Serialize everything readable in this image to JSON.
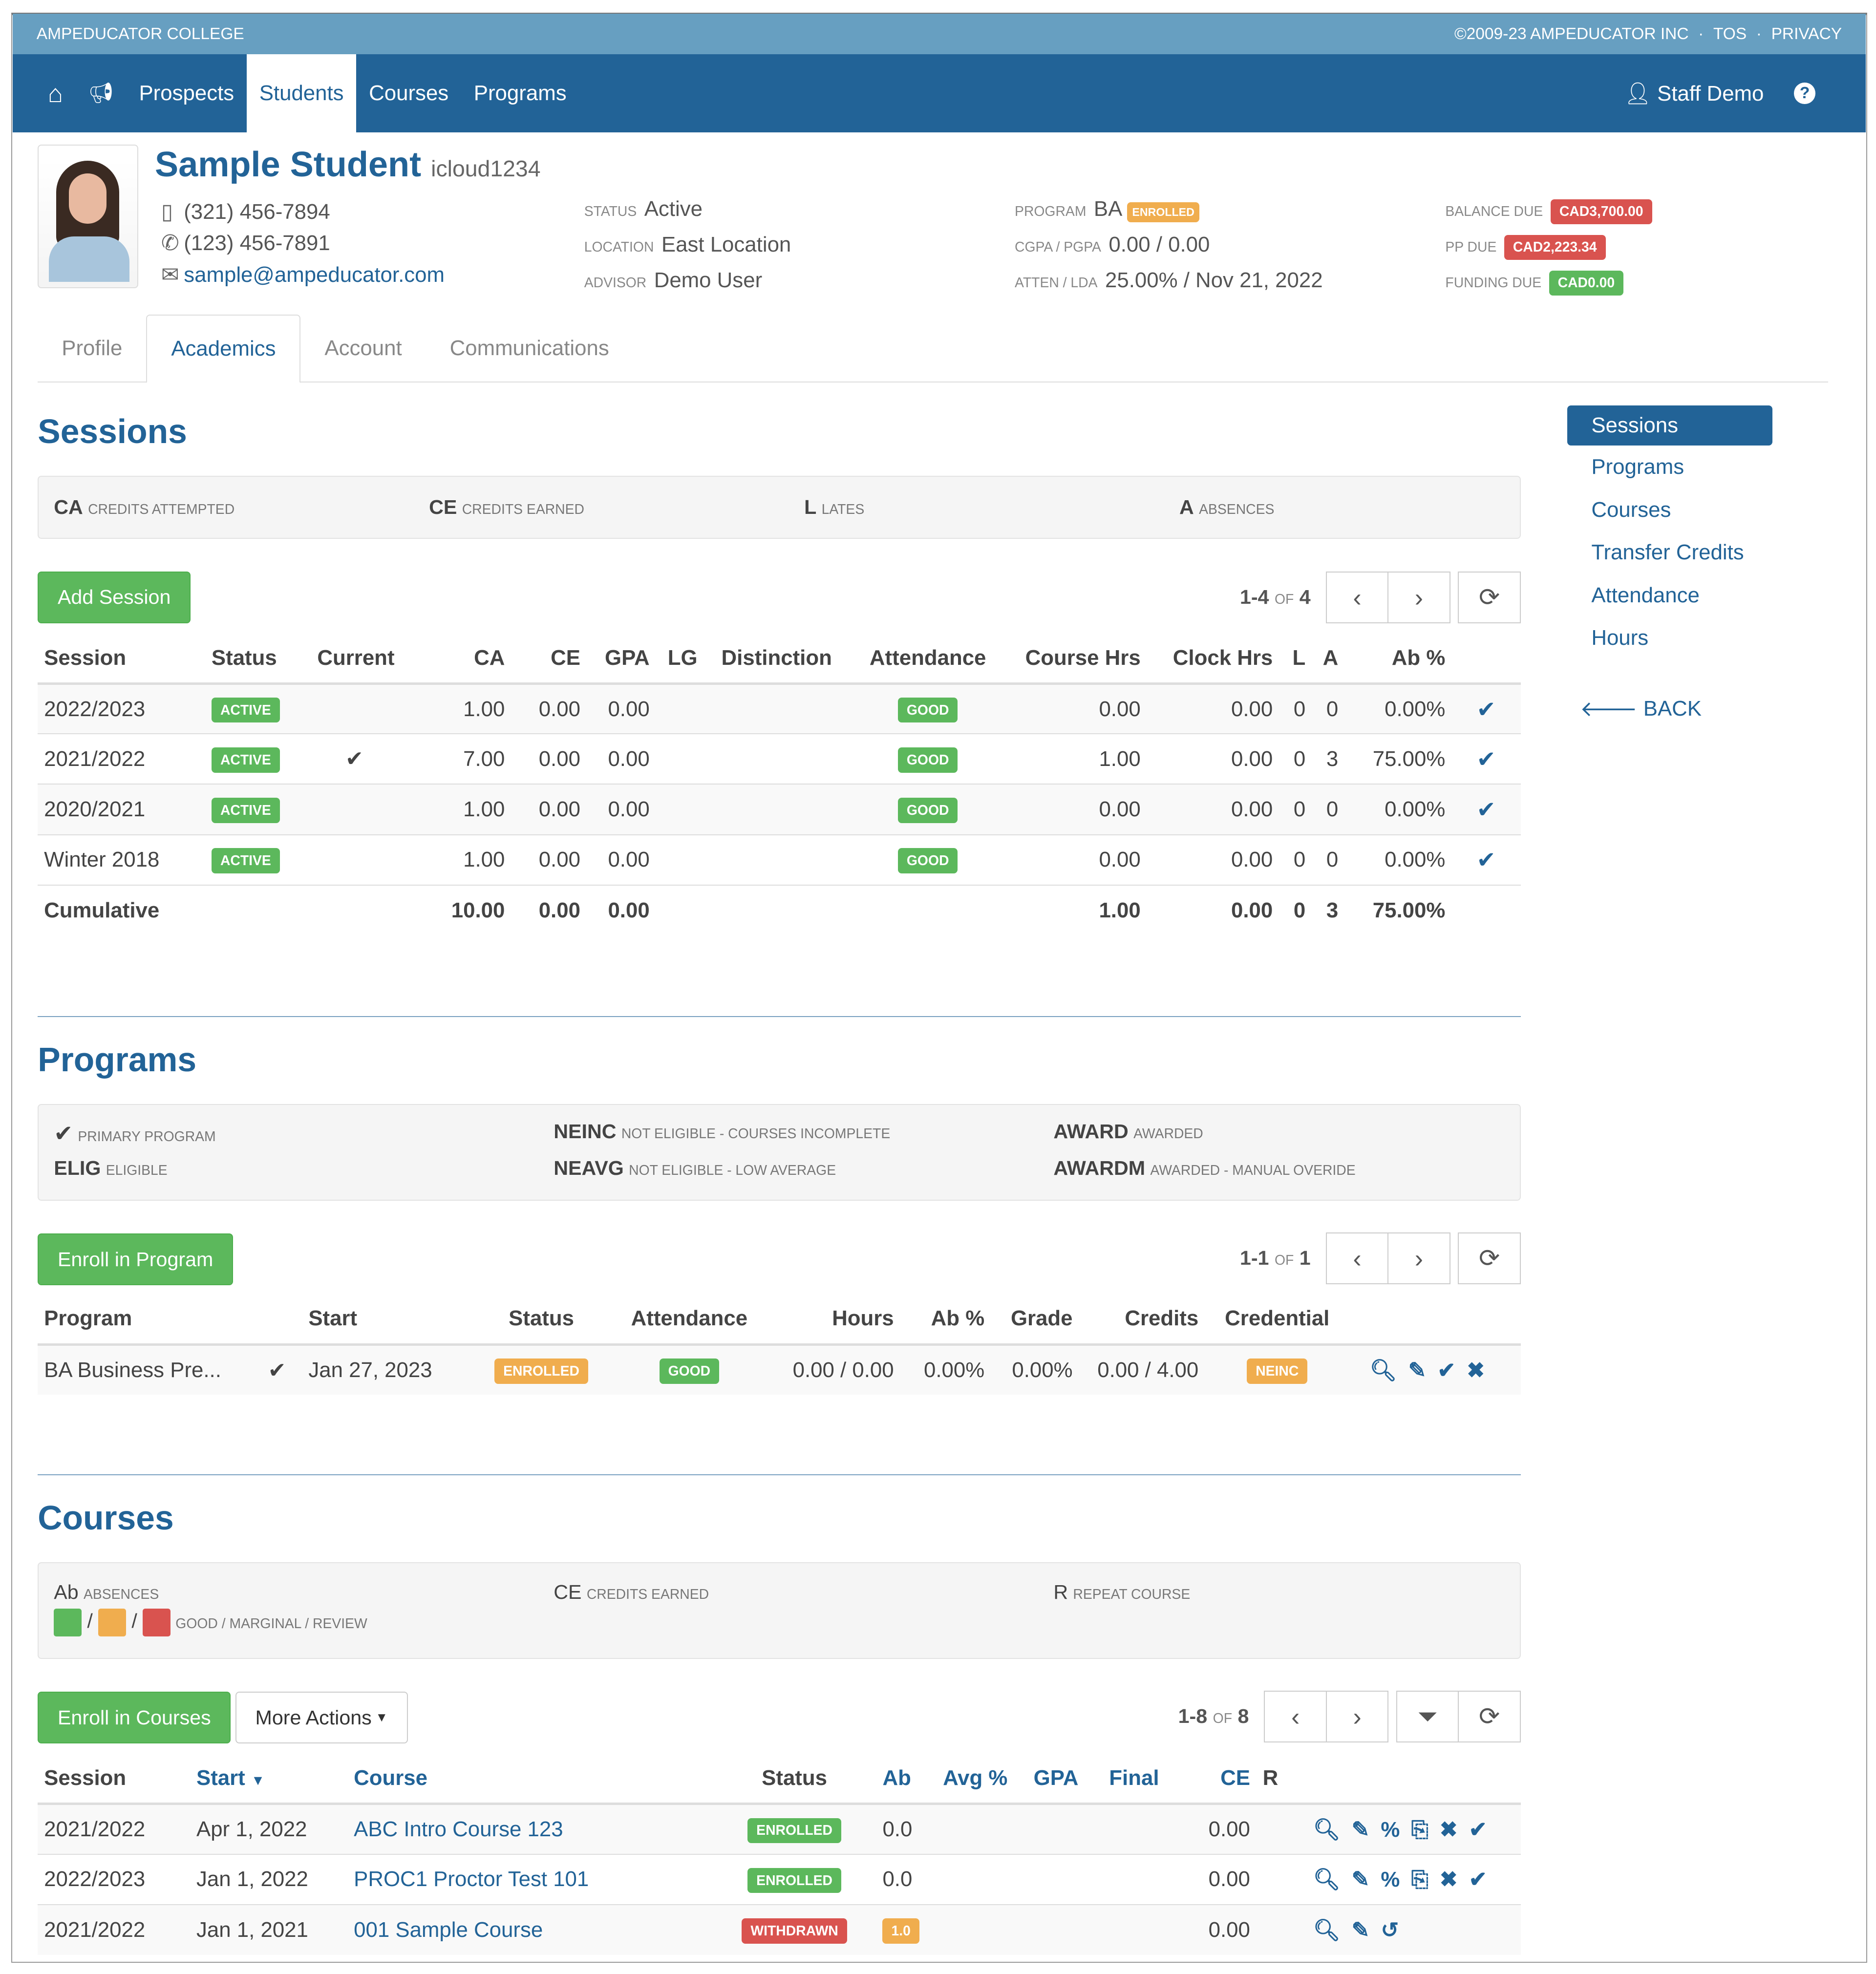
{
  "topbar": {
    "college": "AMPEDUCATOR COLLEGE",
    "copyright": "©2009-23 AMPEDUCATOR INC",
    "tos": "TOS",
    "privacy": "PRIVACY",
    "sep": "·"
  },
  "nav": {
    "items": [
      "Prospects",
      "Students",
      "Courses",
      "Programs"
    ],
    "active": "Students",
    "user": "Staff Demo"
  },
  "student": {
    "name": "Sample Student",
    "username": "icloud1234",
    "mobile": "(321) 456-7894",
    "phone": "(123) 456-7891",
    "email": "sample@ampeducator.com",
    "status_label": "STATUS",
    "status": "Active",
    "location_label": "LOCATION",
    "location": "East Location",
    "advisor_label": "ADVISOR",
    "advisor": "Demo User",
    "program_label": "PROGRAM",
    "program": "BA",
    "program_badge": "ENROLLED",
    "cgpa_label": "CGPA / PGPA",
    "cgpa": "0.00 / 0.00",
    "atten_label": "ATTEN / LDA",
    "atten": "25.00% / Nov 21, 2022",
    "balance_label": "BALANCE DUE",
    "balance": "CAD3,700.00",
    "pp_label": "PP DUE",
    "pp": "CAD2,223.34",
    "funding_label": "FUNDING DUE",
    "funding": "CAD0.00"
  },
  "tabs": [
    "Profile",
    "Academics",
    "Account",
    "Communications"
  ],
  "sidenav": {
    "items": [
      "Sessions",
      "Programs",
      "Courses",
      "Transfer Credits",
      "Attendance",
      "Hours"
    ],
    "back": "BACK"
  },
  "sessions": {
    "title": "Sessions",
    "legend": [
      [
        "CA",
        "CREDITS ATTEMPTED"
      ],
      [
        "CE",
        "CREDITS EARNED"
      ],
      [
        "L",
        "LATES"
      ],
      [
        "A",
        "ABSENCES"
      ]
    ],
    "add_label": "Add Session",
    "pager": {
      "range": "1-4",
      "of": "OF",
      "total": "4"
    },
    "headers": [
      "Session",
      "Status",
      "Current",
      "CA",
      "CE",
      "GPA",
      "LG",
      "Distinction",
      "Attendance",
      "Course Hrs",
      "Clock Hrs",
      "L",
      "A",
      "Ab %"
    ],
    "rows": [
      {
        "session": "2022/2023",
        "status": "ACTIVE",
        "current": "",
        "ca": "1.00",
        "ce": "0.00",
        "gpa": "0.00",
        "attendance": "GOOD",
        "course_hrs": "0.00",
        "clock_hrs": "0.00",
        "l": "0",
        "a": "0",
        "ab": "0.00%"
      },
      {
        "session": "2021/2022",
        "status": "ACTIVE",
        "current": "✔",
        "ca": "7.00",
        "ce": "0.00",
        "gpa": "0.00",
        "attendance": "GOOD",
        "course_hrs": "1.00",
        "clock_hrs": "0.00",
        "l": "0",
        "a": "3",
        "ab": "75.00%"
      },
      {
        "session": "2020/2021",
        "status": "ACTIVE",
        "current": "",
        "ca": "1.00",
        "ce": "0.00",
        "gpa": "0.00",
        "attendance": "GOOD",
        "course_hrs": "0.00",
        "clock_hrs": "0.00",
        "l": "0",
        "a": "0",
        "ab": "0.00%"
      },
      {
        "session": "Winter 2018",
        "status": "ACTIVE",
        "current": "",
        "ca": "1.00",
        "ce": "0.00",
        "gpa": "0.00",
        "attendance": "GOOD",
        "course_hrs": "0.00",
        "clock_hrs": "0.00",
        "l": "0",
        "a": "0",
        "ab": "0.00%"
      }
    ],
    "cumulative": {
      "label": "Cumulative",
      "ca": "10.00",
      "ce": "0.00",
      "gpa": "0.00",
      "course_hrs": "1.00",
      "clock_hrs": "0.00",
      "l": "0",
      "a": "3",
      "ab": "75.00%"
    }
  },
  "programs": {
    "title": "Programs",
    "legend": [
      [
        "",
        "PRIMARY PROGRAM"
      ],
      [
        "ELIG",
        "ELIGIBLE"
      ],
      [
        "NEINC",
        "NOT ELIGIBLE - COURSES INCOMPLETE"
      ],
      [
        "NEAVG",
        "NOT ELIGIBLE - LOW AVERAGE"
      ],
      [
        "AWARD",
        "AWARDED"
      ],
      [
        "AWARDM",
        "AWARDED - MANUAL OVERIDE"
      ]
    ],
    "enroll_label": "Enroll in Program",
    "pager": {
      "range": "1-1",
      "of": "OF",
      "total": "1"
    },
    "headers": [
      "Program",
      "Start",
      "Status",
      "Attendance",
      "Hours",
      "Ab %",
      "Grade",
      "Credits",
      "Credential"
    ],
    "rows": [
      {
        "program": "BA Business Pre...",
        "start": "Jan 27, 2023",
        "status": "ENROLLED",
        "attendance": "GOOD",
        "hours": "0.00 / 0.00",
        "ab": "0.00%",
        "grade": "0.00%",
        "credits": "0.00 / 4.00",
        "credential": "NEINC"
      }
    ]
  },
  "courses": {
    "title": "Courses",
    "legend": [
      [
        "Ab",
        "ABSENCES"
      ],
      [
        "CE",
        "CREDITS EARNED"
      ],
      [
        "R",
        "REPEAT COURSE"
      ],
      [
        "",
        "GOOD / MARGINAL / REVIEW"
      ]
    ],
    "colors": {
      "good": "#5cb85c",
      "marginal": "#f0ad4e",
      "review": "#d9534f"
    },
    "enroll_label": "Enroll in Courses",
    "more_label": "More Actions",
    "pager": {
      "range": "1-8",
      "of": "OF",
      "total": "8"
    },
    "headers": [
      "Session",
      "Start",
      "Course",
      "Status",
      "Ab",
      "Avg %",
      "GPA",
      "Final",
      "CE",
      "R"
    ],
    "rows": [
      {
        "session": "2021/2022",
        "start": "Apr 1, 2022",
        "course": "ABC Intro Course 123",
        "status": "ENROLLED",
        "ab": "0.0",
        "ce": "0.00"
      },
      {
        "session": "2022/2023",
        "start": "Jan 1, 2022",
        "course": "PROC1 Proctor Test 101",
        "status": "ENROLLED",
        "ab": "0.0",
        "ce": "0.00"
      },
      {
        "session": "2021/2022",
        "start": "Jan 1, 2021",
        "course": "001 Sample Course",
        "status": "WITHDRAWN",
        "ab": "1.0",
        "ce": "0.00"
      }
    ]
  }
}
